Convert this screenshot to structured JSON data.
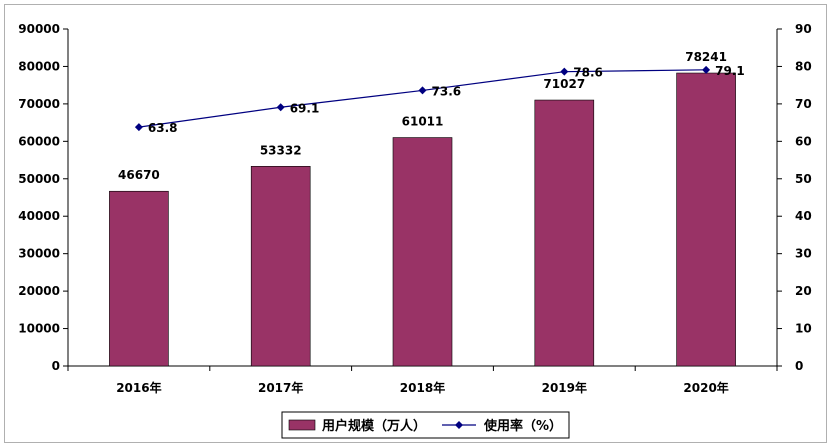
{
  "chart_data": {
    "type": "bar+line",
    "categories": [
      "2016年",
      "2017年",
      "2018年",
      "2019年",
      "2020年"
    ],
    "series": [
      {
        "name": "用户规模（万人）",
        "type": "bar",
        "axis": "left",
        "values": [
          46670,
          53332,
          61011,
          71027,
          78241
        ],
        "color": "#993366"
      },
      {
        "name": "使用率（%）",
        "type": "line",
        "axis": "right",
        "values": [
          63.8,
          69.1,
          73.6,
          78.6,
          79.1
        ],
        "color": "#000080"
      }
    ],
    "y_left": {
      "range": [
        0,
        90000
      ],
      "ticks": [
        "0",
        "10000",
        "20000",
        "30000",
        "40000",
        "50000",
        "60000",
        "70000",
        "80000",
        "90000"
      ]
    },
    "y_right": {
      "range": [
        0,
        90
      ],
      "ticks": [
        "0",
        "10",
        "20",
        "30",
        "40",
        "50",
        "60",
        "70",
        "80",
        "90"
      ]
    },
    "grid": false,
    "legend": "bottom-center"
  }
}
